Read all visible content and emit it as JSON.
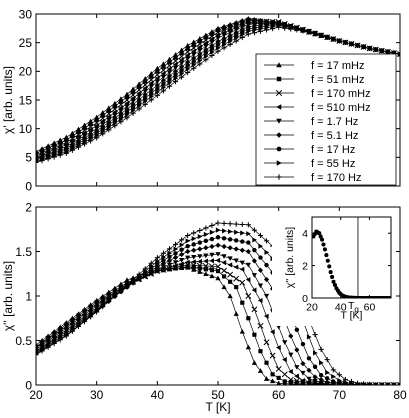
{
  "chart_data": [
    {
      "type": "line",
      "panel": "top",
      "ylabel": "χ' [arb. units]",
      "xlabel": "",
      "xlim": [
        20,
        80
      ],
      "ylim": [
        0,
        30
      ],
      "xticks": [
        "20",
        "30",
        "40",
        "50",
        "60",
        "70",
        "80"
      ],
      "yticks": [
        "0",
        "5",
        "10",
        "15",
        "20",
        "25",
        "30"
      ],
      "show_x_ticklabels": false,
      "grid": false,
      "legend_position": "right",
      "series": [
        {
          "name": "f = 17 mHz",
          "marker": "triangle-up",
          "x": [
            20,
            25,
            30,
            35,
            40,
            45,
            50,
            55,
            60,
            65,
            70,
            75,
            80
          ],
          "y": [
            6,
            8.5,
            12,
            16,
            20.5,
            24.5,
            27.5,
            29.2,
            28.4,
            26.8,
            25.3,
            24,
            23
          ]
        },
        {
          "name": "f = 51 mHz",
          "marker": "square",
          "x": [
            20,
            25,
            30,
            35,
            40,
            45,
            50,
            55,
            60,
            65,
            70,
            75,
            80
          ],
          "y": [
            5.7,
            8,
            11.5,
            15.5,
            20,
            24,
            27.2,
            29,
            28.5,
            26.8,
            25.3,
            24,
            23
          ]
        },
        {
          "name": "f = 170 mHz",
          "marker": "cross",
          "x": [
            20,
            25,
            30,
            35,
            40,
            45,
            50,
            55,
            60,
            65,
            70,
            75,
            80
          ],
          "y": [
            5.4,
            7.6,
            11,
            15,
            19.4,
            23.4,
            26.8,
            28.8,
            28.6,
            26.9,
            25.3,
            24,
            23
          ]
        },
        {
          "name": "f = 510 mHz",
          "marker": "triangle-left",
          "x": [
            20,
            25,
            30,
            35,
            40,
            45,
            50,
            55,
            60,
            65,
            70,
            75,
            80
          ],
          "y": [
            5.1,
            7.2,
            10.5,
            14.4,
            18.8,
            22.8,
            26.3,
            28.5,
            28.6,
            27,
            25.3,
            24,
            23
          ]
        },
        {
          "name": "f = 1.7 Hz",
          "marker": "triangle-down",
          "x": [
            20,
            25,
            30,
            35,
            40,
            45,
            50,
            55,
            60,
            65,
            70,
            75,
            80
          ],
          "y": [
            4.9,
            6.9,
            10,
            13.9,
            18.2,
            22.2,
            25.8,
            28.2,
            28.5,
            27,
            25.3,
            24,
            23
          ]
        },
        {
          "name": "f = 5.1 Hz",
          "marker": "diamond",
          "x": [
            20,
            25,
            30,
            35,
            40,
            45,
            50,
            55,
            60,
            65,
            70,
            75,
            80
          ],
          "y": [
            4.7,
            6.6,
            9.6,
            13.4,
            17.6,
            21.6,
            25.2,
            27.8,
            28.4,
            27,
            25.3,
            24,
            23
          ]
        },
        {
          "name": "f = 17 Hz",
          "marker": "circle",
          "x": [
            20,
            25,
            30,
            35,
            40,
            45,
            50,
            55,
            60,
            65,
            70,
            75,
            80
          ],
          "y": [
            4.5,
            6.3,
            9.2,
            12.9,
            17,
            21,
            24.7,
            27.4,
            28.2,
            27,
            25.3,
            24,
            23
          ]
        },
        {
          "name": "f = 55 Hz",
          "marker": "triangle-right",
          "x": [
            20,
            25,
            30,
            35,
            40,
            45,
            50,
            55,
            60,
            65,
            70,
            75,
            80
          ],
          "y": [
            4.3,
            6,
            8.8,
            12.4,
            16.4,
            20.4,
            24.1,
            27,
            28,
            27,
            25.3,
            24,
            23
          ]
        },
        {
          "name": "f = 170 Hz",
          "marker": "plus",
          "x": [
            20,
            25,
            30,
            35,
            40,
            45,
            50,
            55,
            60,
            65,
            70,
            75,
            80
          ],
          "y": [
            4.1,
            5.7,
            8.4,
            11.9,
            15.8,
            19.8,
            23.5,
            26.5,
            27.7,
            26.9,
            25.3,
            24,
            23
          ]
        }
      ]
    },
    {
      "type": "line",
      "panel": "bottom",
      "ylabel": "χ'' [arb. units]",
      "xlabel": "T [K]",
      "xlim": [
        20,
        80
      ],
      "ylim": [
        0,
        2
      ],
      "xticks": [
        "20",
        "30",
        "40",
        "50",
        "60",
        "70",
        "80"
      ],
      "yticks": [
        "0",
        "0.5",
        "1",
        "1.5",
        "2"
      ],
      "grid": false,
      "series": [
        {
          "name": "f = 17 mHz",
          "marker": "triangle-up",
          "x": [
            20,
            25,
            30,
            35,
            40,
            45,
            50,
            52,
            54,
            56,
            58,
            60,
            65,
            70,
            75,
            80
          ],
          "y": [
            0.45,
            0.7,
            0.95,
            1.18,
            1.3,
            1.32,
            1.2,
            1.0,
            0.6,
            0.25,
            0.07,
            0.02,
            0,
            0,
            0,
            0
          ]
        },
        {
          "name": "f = 51 mHz",
          "marker": "square",
          "x": [
            20,
            25,
            30,
            35,
            40,
            45,
            50,
            53,
            55,
            57,
            59,
            61,
            65,
            70,
            75,
            80
          ],
          "y": [
            0.43,
            0.68,
            0.93,
            1.15,
            1.28,
            1.33,
            1.28,
            1.1,
            0.75,
            0.38,
            0.12,
            0.04,
            0.01,
            0,
            0,
            0
          ]
        },
        {
          "name": "f = 170 mHz",
          "marker": "cross",
          "x": [
            20,
            25,
            30,
            35,
            40,
            45,
            50,
            54,
            56,
            58,
            60,
            62,
            65,
            70,
            75,
            80
          ],
          "y": [
            0.42,
            0.66,
            0.91,
            1.13,
            1.28,
            1.35,
            1.33,
            1.15,
            0.85,
            0.48,
            0.18,
            0.06,
            0.02,
            0,
            0,
            0
          ]
        },
        {
          "name": "f = 510 mHz",
          "marker": "triangle-left",
          "x": [
            20,
            25,
            30,
            35,
            40,
            45,
            50,
            54,
            57,
            60,
            62,
            64,
            66,
            70,
            75,
            80
          ],
          "y": [
            0.4,
            0.64,
            0.89,
            1.12,
            1.28,
            1.38,
            1.4,
            1.3,
            0.95,
            0.42,
            0.15,
            0.05,
            0.02,
            0,
            0,
            0
          ]
        },
        {
          "name": "f = 1.7 Hz",
          "marker": "triangle-down",
          "x": [
            20,
            25,
            30,
            35,
            40,
            45,
            50,
            55,
            58,
            61,
            63,
            65,
            67,
            70,
            75,
            80
          ],
          "y": [
            0.38,
            0.62,
            0.87,
            1.11,
            1.3,
            1.43,
            1.47,
            1.35,
            1.0,
            0.48,
            0.2,
            0.07,
            0.02,
            0,
            0,
            0
          ]
        },
        {
          "name": "f = 5.1 Hz",
          "marker": "diamond",
          "x": [
            20,
            25,
            30,
            35,
            40,
            45,
            50,
            55,
            59,
            62,
            64,
            66,
            68,
            70,
            75,
            80
          ],
          "y": [
            0.37,
            0.6,
            0.85,
            1.1,
            1.33,
            1.5,
            1.57,
            1.5,
            1.08,
            0.55,
            0.24,
            0.09,
            0.03,
            0.01,
            0,
            0
          ]
        },
        {
          "name": "f = 17 Hz",
          "marker": "circle",
          "x": [
            20,
            25,
            30,
            35,
            40,
            45,
            50,
            55,
            60,
            63,
            65,
            67,
            69,
            71,
            75,
            80
          ],
          "y": [
            0.36,
            0.58,
            0.84,
            1.1,
            1.36,
            1.56,
            1.66,
            1.6,
            1.18,
            0.62,
            0.3,
            0.11,
            0.04,
            0.01,
            0,
            0
          ]
        },
        {
          "name": "f = 55 Hz",
          "marker": "triangle-right",
          "x": [
            20,
            25,
            30,
            35,
            40,
            45,
            50,
            55,
            60,
            64,
            66,
            68,
            70,
            72,
            75,
            80
          ],
          "y": [
            0.35,
            0.56,
            0.83,
            1.11,
            1.39,
            1.62,
            1.74,
            1.7,
            1.35,
            0.72,
            0.36,
            0.14,
            0.05,
            0.01,
            0,
            0
          ]
        },
        {
          "name": "f = 170 Hz",
          "marker": "plus",
          "x": [
            20,
            25,
            30,
            35,
            40,
            45,
            50,
            55,
            60,
            64,
            67,
            69,
            71,
            73,
            76,
            80
          ],
          "y": [
            0.34,
            0.55,
            0.82,
            1.12,
            1.43,
            1.68,
            1.82,
            1.8,
            1.5,
            0.9,
            0.4,
            0.17,
            0.06,
            0.02,
            0,
            0
          ]
        }
      ]
    },
    {
      "type": "scatter",
      "panel": "inset",
      "ylabel": "χ'' [arb. units]",
      "xlabel": "T [K]",
      "xlim": [
        20,
        75
      ],
      "ylim": [
        0,
        5
      ],
      "xticks": [
        "20",
        "40",
        "60"
      ],
      "yticks": [
        "0",
        "2",
        "4"
      ],
      "annotation": "T_g",
      "vline_x": 52,
      "series": [
        {
          "name": "",
          "marker": "circle",
          "x": [
            21,
            23,
            25,
            27,
            29,
            31,
            33,
            35,
            37,
            39,
            41,
            43,
            45,
            47,
            49,
            52,
            55,
            60,
            65,
            70,
            74
          ],
          "y": [
            3.8,
            4.1,
            4.0,
            3.6,
            3.0,
            2.3,
            1.6,
            1.0,
            0.6,
            0.32,
            0.16,
            0.08,
            0.04,
            0.02,
            0.01,
            0,
            0,
            0,
            0,
            0,
            0
          ]
        }
      ]
    }
  ]
}
